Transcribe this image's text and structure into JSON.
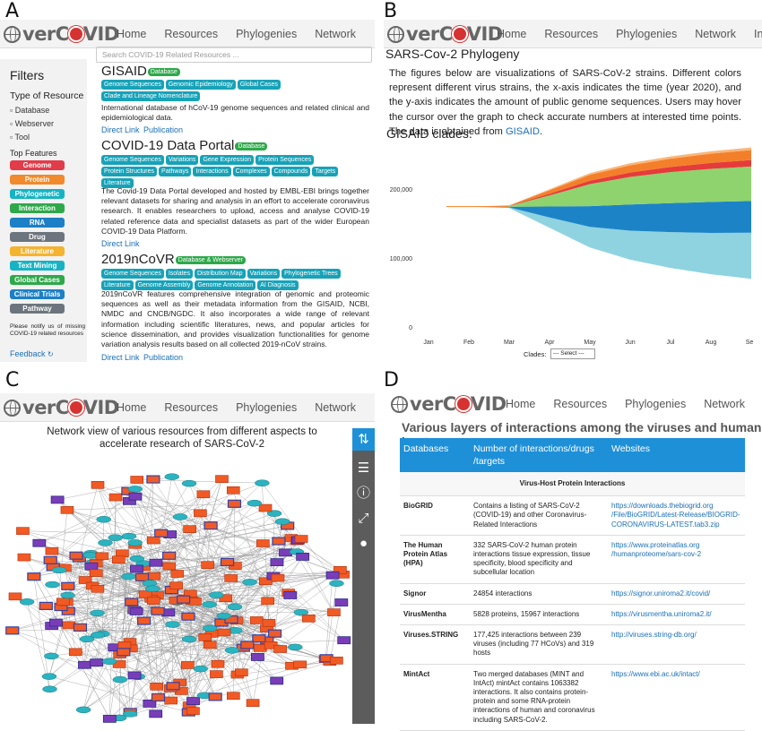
{
  "panels": {
    "a": "A",
    "b": "B",
    "c": "C",
    "d": "D"
  },
  "brand": {
    "logo_text_pre": "ver",
    "logo_text_post": "VID",
    "logo_letters_c": "C"
  },
  "nav": [
    "Home",
    "Resources",
    "Phylogenies",
    "Network",
    "Interaction"
  ],
  "panel_a": {
    "search_placeholder": "Search COVID-19 Related Resources ...",
    "filters_title": "Filters",
    "type_heading": "Type of Resource",
    "types": [
      "Database",
      "Webserver",
      "Tool"
    ],
    "top_features_heading": "Top Features",
    "features": [
      {
        "label": "Genome",
        "color": "#e23b4a"
      },
      {
        "label": "Protein",
        "color": "#f08a2c"
      },
      {
        "label": "Phylogenetic",
        "color": "#17b3c4"
      },
      {
        "label": "Interaction",
        "color": "#2ea84a"
      },
      {
        "label": "RNA",
        "color": "#1d7fc6"
      },
      {
        "label": "Drug",
        "color": "#6c757d"
      },
      {
        "label": "Literature",
        "color": "#f4b430"
      },
      {
        "label": "Text Mining",
        "color": "#17b3c4"
      },
      {
        "label": "Global Cases",
        "color": "#2ea84a"
      },
      {
        "label": "Clinical Trials",
        "color": "#1d7fc6"
      },
      {
        "label": "Pathway",
        "color": "#6c757d"
      }
    ],
    "notify_text": "Please notify us of missing COVID-19 related resources",
    "feedback_label": "Feedback",
    "resources": [
      {
        "title": "GISAID",
        "badge": "Database",
        "tags": [
          "Genome Sequences",
          "Genomic Epidemiology",
          "Global Cases",
          "Clade and Lineage Nomenclature"
        ],
        "description": "International database of hCoV-19 genome sequences and related clinical and epidemiological data.",
        "links": [
          "Direct Link",
          "Publication"
        ]
      },
      {
        "title": "COVID-19 Data Portal",
        "badge": "Database",
        "tags": [
          "Genome Sequences",
          "Variations",
          "Gene Expression",
          "Protein Sequences",
          "Protein Structures",
          "Pathways",
          "Interactions",
          "Complexes",
          "Compounds",
          "Targets",
          "Literature"
        ],
        "description": "The Covid-19 Data Portal developed and hosted by EMBL-EBI brings together relevant datasets for sharing and analysis in an effort to accelerate coronavirus research. It enables researchers to upload, access and analyse COVID-19 related reference data and specialist datasets as part of the wider European COVID-19 Data Platform.",
        "links": [
          "Direct Link"
        ]
      },
      {
        "title": "2019nCoVR",
        "badge": "Database & Webserver",
        "tags": [
          "Genome Sequences",
          "Isolates",
          "Distribution Map",
          "Variations",
          "Phylogenetic Trees",
          "Literature",
          "Genome Assembly",
          "Genome Annotation",
          "AI Diagnosis"
        ],
        "description": "2019nCoVR features comprehensive integration of genomic and proteomic sequences as well as their metadata information from the GISAID, NCBI, NMDC and CNCB/NGDC. It also incorporates a wide range of relevant information including scientific literatures, news, and popular articles for science dissemination, and provides visualization functionalities for genome variation analysis results based on all collected 2019-nCoV strains.",
        "links": [
          "Direct Link",
          "Publication"
        ]
      }
    ]
  },
  "panel_b": {
    "page_title": "SARS-Cov-2 Phylogeny",
    "paragraph_main": "The figures below are visualizations of SARS-CoV-2 strains. Different colors represent different virus strains, the x-axis indicates the time (year 2020), and the y-axis indicates the amount of public genome sequences. Users may hover the cursor over the graph to check accurate numbers at interested time points. The data is obtained from ",
    "paragraph_link": "GISAID",
    "paragraph_end": ".",
    "chart_heading": "GISAID clades:",
    "clades_label": "Clades:",
    "clades_select": "--- Select ---"
  },
  "chart_data": {
    "type": "area",
    "title": "GISAID clades:",
    "categories": [
      "Jan",
      "Feb",
      "Mar",
      "Apr",
      "May",
      "Jun",
      "Jul",
      "Aug",
      "Sep"
    ],
    "ytick_labels": [
      "0",
      "100,000",
      "200,000"
    ],
    "ylim": [
      0,
      260000
    ],
    "series": [
      {
        "color": "#8fd3e0",
        "values": [
          0,
          0,
          1000,
          15000,
          30000,
          42000,
          52000,
          60000,
          67000
        ]
      },
      {
        "color": "#1c84c6",
        "values": [
          0,
          0,
          1000,
          16000,
          30000,
          38000,
          42000,
          45000,
          46000
        ]
      },
      {
        "color": "#8fd36e",
        "values": [
          0,
          0,
          1000,
          16000,
          32000,
          40000,
          45000,
          48000,
          50000
        ]
      },
      {
        "color": "#e63b3b",
        "values": [
          0,
          0,
          300,
          2500,
          5000,
          6500,
          7500,
          8500,
          9500
        ]
      },
      {
        "color": "#f47f2a",
        "values": [
          0,
          0,
          500,
          5000,
          8500,
          10500,
          12000,
          13500,
          14500
        ]
      },
      {
        "color": "#f9b67a",
        "values": [
          0,
          0,
          200,
          1500,
          2500,
          3000,
          3300,
          3500,
          3700
        ]
      }
    ]
  },
  "panel_c": {
    "title": "Network view of various resources from different aspects to accelerate research of SARS-CoV-2",
    "toolbar": [
      "swap-icon",
      "list-icon",
      "info-icon",
      "resize-icon",
      "drop-icon"
    ]
  },
  "panel_d": {
    "heading": "Various layers of interactions among the viruses and human hosts",
    "columns": [
      "Databases",
      "Number of interactions/drugs /targets",
      "Websites"
    ],
    "section": "Virus-Host Protein Interactions",
    "rows": [
      {
        "name": "BioGRID",
        "desc": "Contains a listing of SARS-CoV-2 (COVID-19) and other Coronavirus-Related Interactions",
        "url": "https://downloads.thebiogrid.org /File/BioGRID/Latest-Release/BIOGRID-CORONAVIRUS-LATEST.tab3.zip"
      },
      {
        "name": "The Human Protein Atlas (HPA)",
        "desc": "332 SARS-CoV-2 human protein interactions tissue expression, tissue specificity, blood specificity and subcellular location",
        "url": "https://www.proteinatlas.org /humanproteome/sars-cov-2"
      },
      {
        "name": "Signor",
        "desc": "24854 interactions",
        "url": "https://signor.uniroma2.it/covid/"
      },
      {
        "name": "VirusMentha",
        "desc": "5828 proteins, 15967 interactions",
        "url": "https://virusmentha.uniroma2.it/"
      },
      {
        "name": "Viruses.STRING",
        "desc": "177,425 interactions between 239 viruses (including 77 HCoVs) and 319 hosts",
        "url": "http://viruses.string-db.org/"
      },
      {
        "name": "MintAct",
        "desc": "Two merged databases (MINT and IntAct) mintAct contains 1063382 interactions. It also contains protein-protein and some RNA-protein interactions of human and coronavirus including SARS-CoV-2.",
        "url": "https://www.ebi.ac.uk/intact/"
      }
    ]
  }
}
